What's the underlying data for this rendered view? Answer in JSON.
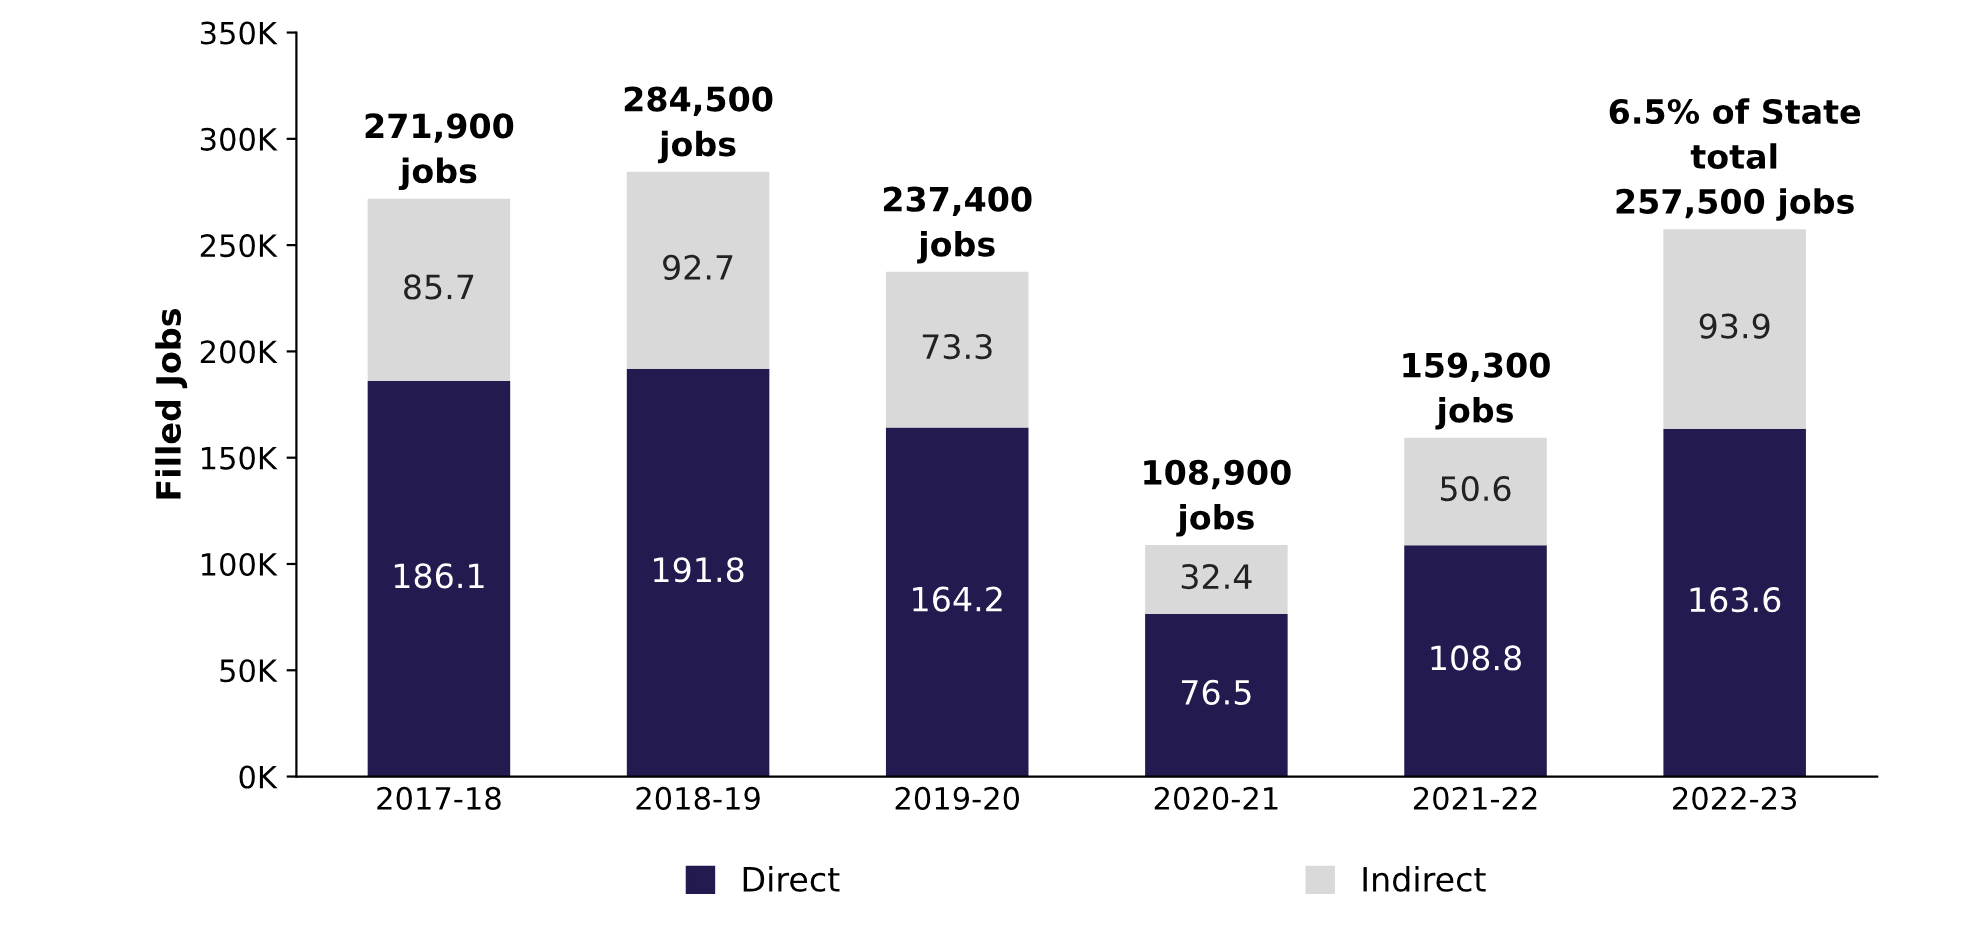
{
  "chart_data": {
    "type": "bar",
    "stacked": true,
    "ylabel": "Filled Jobs",
    "categories": [
      "2017-18",
      "2018-19",
      "2019-20",
      "2020-21",
      "2021-22",
      "2022-23"
    ],
    "series": [
      {
        "name": "Direct",
        "color": "#231b4f",
        "values": [
          186.1,
          191.8,
          164.2,
          76.5,
          108.8,
          163.6
        ]
      },
      {
        "name": "Indirect",
        "color": "#d9d9d9",
        "values": [
          85.7,
          92.7,
          73.3,
          32.4,
          50.6,
          93.9
        ]
      }
    ],
    "annotations": [
      {
        "text": "271,900\njobs",
        "x": "2017-18",
        "y": 271.9
      },
      {
        "text": "284,500\njobs",
        "x": "2018-19",
        "y": 284.5
      },
      {
        "text": "237,400\njobs",
        "x": "2019-20",
        "y": 237.4
      },
      {
        "text": "108,900\njobs",
        "x": "2020-21",
        "y": 108.9
      },
      {
        "text": "159,300\njobs",
        "x": "2021-22",
        "y": 159.3
      },
      {
        "text": "6.5% of State\ntotal\n257,500 jobs",
        "x": "2022-23",
        "y": 257.5
      }
    ],
    "data_labels": true,
    "ylim": [
      0,
      350
    ],
    "yticks": [
      {
        "value": 0,
        "label": "0K"
      },
      {
        "value": 50,
        "label": "50K"
      },
      {
        "value": 100,
        "label": "100K"
      },
      {
        "value": 150,
        "label": "150K"
      },
      {
        "value": 200,
        "label": "200K"
      },
      {
        "value": 250,
        "label": "250K"
      },
      {
        "value": 300,
        "label": "300K"
      },
      {
        "value": 350,
        "label": "350K"
      }
    ],
    "grid": false,
    "legend": "bottom"
  }
}
